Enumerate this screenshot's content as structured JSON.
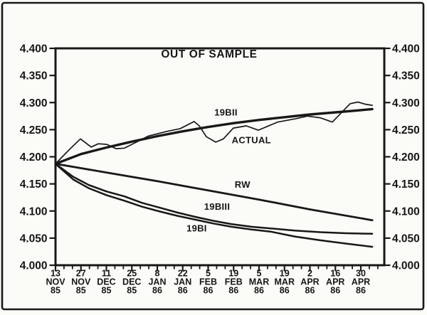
{
  "chart_data": {
    "type": "line",
    "title": "OUT OF SAMPLE",
    "x_axis": {
      "tick_labels": [
        [
          "13",
          "NOV",
          "85"
        ],
        [
          "27",
          "NOV",
          "85"
        ],
        [
          "11",
          "DEC",
          "85"
        ],
        [
          "25",
          "DEC",
          "85"
        ],
        [
          "8",
          "JAN",
          "86"
        ],
        [
          "22",
          "JAN",
          "86"
        ],
        [
          "5",
          "FEB",
          "86"
        ],
        [
          "19",
          "FEB",
          "86"
        ],
        [
          "5",
          "MAR",
          "86"
        ],
        [
          "19",
          "MAR",
          "86"
        ],
        [
          "2",
          "APR",
          "86"
        ],
        [
          "16",
          "APR",
          "86"
        ],
        [
          "30",
          "APR",
          "86"
        ]
      ],
      "minor_ticks_per_interval": 2,
      "axis_end_units": 12.92
    },
    "y_axis": {
      "min": 4.0,
      "max": 4.4,
      "step": 0.05,
      "tick_labels": [
        "4.000",
        "4.050",
        "4.100",
        "4.150",
        "4.200",
        "4.250",
        "4.300",
        "4.350",
        "4.400"
      ],
      "sides": "both"
    },
    "ink_color": "#181818",
    "grid": false,
    "legend": "inline-labels",
    "series": [
      {
        "name": "ACTUAL",
        "line_width": 1.7,
        "label": {
          "text": "ACTUAL",
          "u": 7.7,
          "v": 4.231
        },
        "points": [
          [
            0,
            4.187
          ],
          [
            0.56,
            4.214
          ],
          [
            0.98,
            4.233
          ],
          [
            1.4,
            4.218
          ],
          [
            1.68,
            4.224
          ],
          [
            2.01,
            4.223
          ],
          [
            2.38,
            4.215
          ],
          [
            2.71,
            4.216
          ],
          [
            3.13,
            4.226
          ],
          [
            3.64,
            4.238
          ],
          [
            4.39,
            4.247
          ],
          [
            4.9,
            4.252
          ],
          [
            5.45,
            4.265
          ],
          [
            5.65,
            4.257
          ],
          [
            5.93,
            4.237
          ],
          [
            6.3,
            4.227
          ],
          [
            6.6,
            4.233
          ],
          [
            6.99,
            4.253
          ],
          [
            7.5,
            4.257
          ],
          [
            7.97,
            4.249
          ],
          [
            8.73,
            4.264
          ],
          [
            9.43,
            4.27
          ],
          [
            9.9,
            4.275
          ],
          [
            10.4,
            4.272
          ],
          [
            10.88,
            4.264
          ],
          [
            11.58,
            4.298
          ],
          [
            11.89,
            4.301
          ],
          [
            12.17,
            4.297
          ],
          [
            12.45,
            4.295
          ]
        ]
      },
      {
        "name": "19BII",
        "line_width": 3.4,
        "label": {
          "text": "19BII",
          "u": 6.7,
          "v": 4.282
        },
        "points": [
          [
            0,
            4.187
          ],
          [
            1,
            4.205
          ],
          [
            2,
            4.217
          ],
          [
            3,
            4.228
          ],
          [
            4,
            4.238
          ],
          [
            5,
            4.247
          ],
          [
            6,
            4.255
          ],
          [
            7,
            4.262
          ],
          [
            8,
            4.268
          ],
          [
            9,
            4.273
          ],
          [
            10,
            4.278
          ],
          [
            11,
            4.282
          ],
          [
            12,
            4.286
          ],
          [
            12.45,
            4.288
          ]
        ]
      },
      {
        "name": "RW",
        "line_width": 2.8,
        "label": {
          "text": "RW",
          "u": 7.35,
          "v": 4.149
        },
        "points": [
          [
            0,
            4.187
          ],
          [
            2,
            4.171
          ],
          [
            4,
            4.155
          ],
          [
            6,
            4.138
          ],
          [
            8,
            4.121
          ],
          [
            10,
            4.103
          ],
          [
            12.45,
            4.083
          ]
        ]
      },
      {
        "name": "19BIII",
        "line_width": 2.5,
        "label": {
          "text": "19BIII",
          "u": 6.35,
          "v": 4.108
        },
        "points": [
          [
            0,
            4.187
          ],
          [
            0.7,
            4.163
          ],
          [
            1.31,
            4.148
          ],
          [
            2.01,
            4.136
          ],
          [
            2.71,
            4.127
          ],
          [
            3.4,
            4.115
          ],
          [
            4.11,
            4.106
          ],
          [
            4.8,
            4.097
          ],
          [
            5.51,
            4.089
          ],
          [
            6.2,
            4.082
          ],
          [
            6.91,
            4.076
          ],
          [
            7.7,
            4.071
          ],
          [
            8.45,
            4.068
          ],
          [
            9.4,
            4.064
          ],
          [
            10.4,
            4.061
          ],
          [
            11.4,
            4.059
          ],
          [
            12.45,
            4.058
          ]
        ]
      },
      {
        "name": "19BI",
        "line_width": 2.5,
        "label": {
          "text": "19BI",
          "u": 5.55,
          "v": 4.068
        },
        "points": [
          [
            0,
            4.187
          ],
          [
            0.7,
            4.158
          ],
          [
            1.31,
            4.142
          ],
          [
            2.01,
            4.129
          ],
          [
            2.71,
            4.119
          ],
          [
            3.4,
            4.108
          ],
          [
            4.11,
            4.099
          ],
          [
            4.8,
            4.091
          ],
          [
            5.51,
            4.084
          ],
          [
            6.2,
            4.077
          ],
          [
            6.91,
            4.071
          ],
          [
            7.7,
            4.066
          ],
          [
            8.45,
            4.062
          ],
          [
            9.4,
            4.053
          ],
          [
            10.4,
            4.046
          ],
          [
            11.4,
            4.04
          ],
          [
            12.45,
            4.034
          ]
        ]
      }
    ]
  }
}
